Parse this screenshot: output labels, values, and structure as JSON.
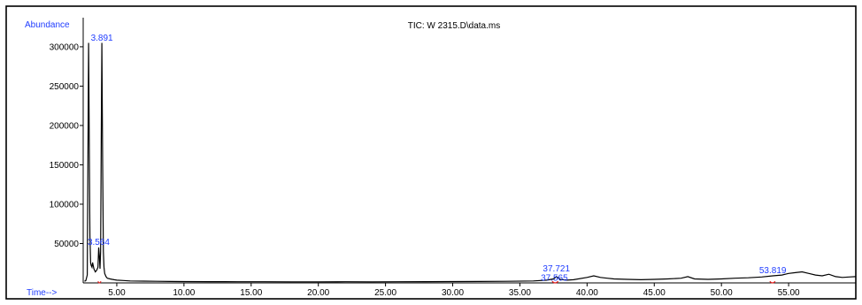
{
  "chart_data": {
    "type": "line",
    "title": "TIC: W 2315.D\\data.ms",
    "ylabel": "Abundance",
    "xlabel": "Time-->",
    "xlim": [
      2.5,
      60
    ],
    "ylim": [
      0,
      310000
    ],
    "x_ticks": [
      5,
      10,
      15,
      20,
      25,
      30,
      35,
      40,
      45,
      50,
      55
    ],
    "x_tick_labels": [
      "5.00",
      "10.00",
      "15.00",
      "20.00",
      "25.00",
      "30.00",
      "35.00",
      "40.00",
      "45.00",
      "50.00",
      "55.00"
    ],
    "y_ticks": [
      50000,
      100000,
      150000,
      200000,
      250000,
      300000
    ],
    "y_tick_labels": [
      "50000",
      "100000",
      "150000",
      "200000",
      "250000",
      "300000"
    ],
    "series": [
      {
        "x": [
          2.6,
          2.7,
          2.8,
          2.9,
          3.0,
          3.05,
          3.1,
          3.15,
          3.2,
          3.3,
          3.4,
          3.5,
          3.6,
          3.65,
          3.7,
          3.75,
          3.8,
          3.85,
          3.89,
          3.95,
          4.0,
          4.05,
          4.1,
          4.2,
          4.3,
          4.5,
          4.8,
          5.0,
          5.5,
          6.0,
          7.0,
          8.0,
          9.0,
          10.0,
          12.0,
          14.0,
          16.0,
          18.0,
          20.0,
          22.0,
          24.0,
          26.0,
          28.0,
          30.0,
          32.0,
          34.0,
          36.0,
          37.0,
          37.5,
          37.72,
          38.0,
          38.5,
          39.0,
          40.0,
          40.5,
          41.0,
          41.5,
          42.0,
          43.0,
          44.0,
          45.0,
          46.0,
          47.0,
          47.5,
          48.0,
          49.0,
          50.0,
          51.0,
          52.0,
          53.0,
          53.82,
          54.5,
          55.0,
          55.5,
          56.0,
          56.5,
          57.0,
          57.5,
          58.0,
          58.5,
          59.0,
          59.5,
          60.0
        ],
        "y": [
          2000,
          3000,
          10000,
          305000,
          60000,
          25000,
          22000,
          20000,
          26000,
          18000,
          14000,
          16000,
          20000,
          45000,
          35000,
          18000,
          40000,
          200000,
          305000,
          150000,
          40000,
          20000,
          12000,
          8000,
          6000,
          5000,
          4000,
          3500,
          3000,
          2500,
          2200,
          2000,
          1800,
          1700,
          1600,
          1500,
          1500,
          1400,
          1400,
          1500,
          1400,
          1500,
          1600,
          1700,
          1800,
          2000,
          2500,
          3500,
          5000,
          8000,
          4500,
          3500,
          4000,
          7000,
          9000,
          7000,
          6000,
          5000,
          4500,
          4000,
          4500,
          5000,
          6000,
          8000,
          5000,
          4500,
          5000,
          6000,
          6500,
          7500,
          9000,
          10000,
          12000,
          13000,
          14000,
          12000,
          10000,
          9000,
          11000,
          8000,
          7000,
          7500,
          8000
        ]
      }
    ],
    "peak_labels": [
      {
        "text": "3.891",
        "x": 3.89,
        "y": 305000
      },
      {
        "text": "3.564",
        "x": 3.65,
        "y": 45000
      },
      {
        "text": "37.721",
        "x": 37.72,
        "y": 8000
      },
      {
        "text": "37.565",
        "x": 37.565,
        "y": 5000
      },
      {
        "text": "53.819",
        "x": 53.82,
        "y": 9000
      }
    ]
  }
}
